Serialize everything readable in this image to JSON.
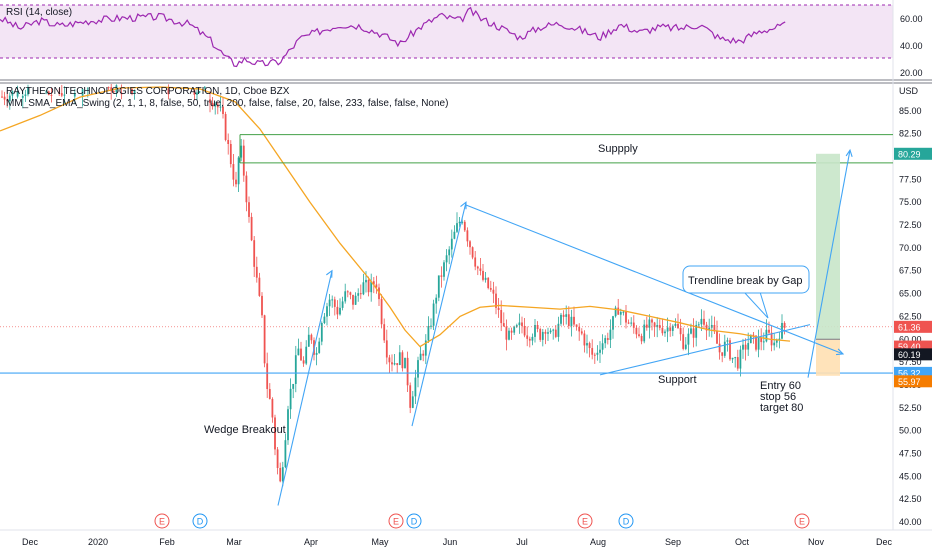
{
  "chart_data": {
    "type": "candlestick",
    "symbol_title": "RAYTHEON TECHNOLOGIES CORPORATION, 1D, Cboe BZX",
    "indicator_title": "MM_SMA_EMA_Swing (2, 1, 1, 8, false, 50, true, 200, false, false, 20, false, 233, false, false, None)",
    "currency": "USD",
    "price_axis": {
      "min": 40.0,
      "max": 87.5,
      "ticks": [
        40.0,
        42.5,
        45.0,
        47.5,
        50.0,
        52.5,
        55.0,
        57.5,
        60.0,
        62.5,
        65.0,
        67.5,
        70.0,
        72.5,
        75.0,
        77.5,
        80.0,
        82.5,
        85.0
      ]
    },
    "time_axis": [
      "Dec",
      "2020",
      "Feb",
      "Mar",
      "Apr",
      "May",
      "Jun",
      "Jul",
      "Aug",
      "Sep",
      "Oct",
      "Nov",
      "Dec"
    ],
    "price_labels": [
      {
        "value": "80.29",
        "color": "#26a69a"
      },
      {
        "value": "61.36",
        "color": "#ef5350"
      },
      {
        "value": "59.40",
        "color": "#ef5350"
      },
      {
        "value": "60.19",
        "color": "#131722"
      },
      {
        "value": "56.32",
        "color": "#42a5f5"
      },
      {
        "value": "55.97",
        "color": "#f57c00"
      }
    ],
    "levels": {
      "supply_top": 82.4,
      "supply_bottom": 79.3,
      "support": 56.3
    },
    "annotations": {
      "supply": "Suppply",
      "support": "Support",
      "trendline_break": "Trendline break by Gap",
      "wedge_breakout": "Wedge Breakout",
      "trade_lines": [
        "Entry 60",
        "stop 56",
        "target 80"
      ]
    },
    "position_box": {
      "entry": 60.0,
      "target": 80.3,
      "stop": 56.0
    },
    "event_markers": [
      {
        "label": "E",
        "month": "Jan",
        "type": "earnings"
      },
      {
        "label": "D",
        "month": "Feb",
        "type": "dividend"
      },
      {
        "label": "E",
        "month": "May",
        "type": "earnings"
      },
      {
        "label": "D",
        "month": "May",
        "type": "dividend"
      },
      {
        "label": "E",
        "month": "Aug",
        "type": "earnings"
      },
      {
        "label": "D",
        "month": "Aug",
        "type": "dividend"
      },
      {
        "label": "E",
        "month": "Oct",
        "type": "earnings"
      }
    ],
    "rsi": {
      "title": "RSI (14, close)",
      "ticks": [
        20.0,
        40.0,
        60.0
      ],
      "band": [
        30,
        70
      ],
      "color": "#9c27b0"
    },
    "colors": {
      "up": "#26a69a",
      "down": "#ef5350",
      "ma": "#f5a623",
      "trend": "#42a5f5"
    }
  }
}
